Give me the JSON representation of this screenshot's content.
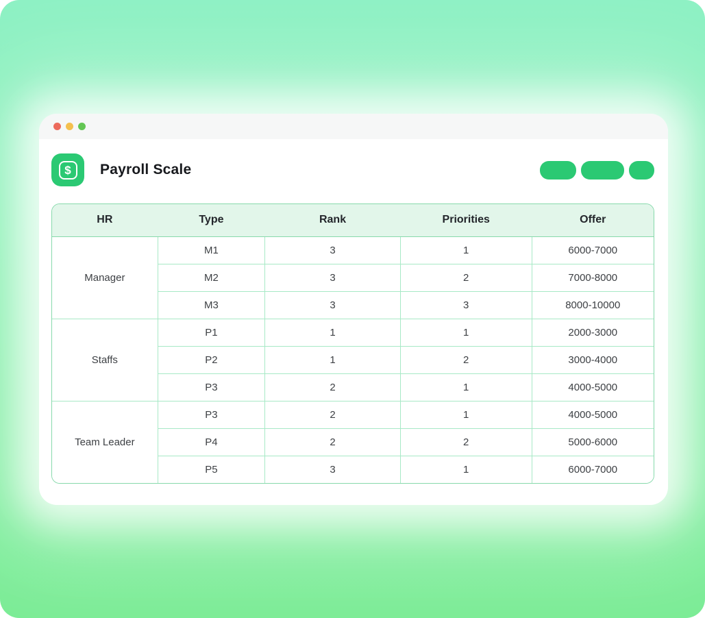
{
  "app": {
    "title": "Payroll Scale",
    "icon_glyph": "$"
  },
  "window_controls": [
    "close",
    "minimize",
    "maximize"
  ],
  "toolbar_buttons": [
    {
      "name": "toolbar-button-1",
      "label": ""
    },
    {
      "name": "toolbar-button-2",
      "label": ""
    },
    {
      "name": "toolbar-button-3",
      "label": ""
    }
  ],
  "table": {
    "columns": [
      "HR",
      "Type",
      "Rank",
      "Priorities",
      "Offer"
    ],
    "groups": [
      {
        "hr": "Manager",
        "rows": [
          [
            "M1",
            "3",
            "1",
            "6000-7000"
          ],
          [
            "M2",
            "3",
            "2",
            "7000-8000"
          ],
          [
            "M3",
            "3",
            "3",
            "8000-10000"
          ]
        ]
      },
      {
        "hr": "Staffs",
        "rows": [
          [
            "P1",
            "1",
            "1",
            "2000-3000"
          ],
          [
            "P2",
            "1",
            "2",
            "3000-4000"
          ],
          [
            "P3",
            "2",
            "1",
            "4000-5000"
          ]
        ]
      },
      {
        "hr": "Team Leader",
        "rows": [
          [
            "P3",
            "2",
            "1",
            "4000-5000"
          ],
          [
            "P4",
            "2",
            "2",
            "5000-6000"
          ],
          [
            "P5",
            "3",
            "1",
            "6000-7000"
          ]
        ]
      }
    ]
  },
  "colors": {
    "accent_green": "#2bc973",
    "bg_top": "#8df1c4",
    "bg_mid": "#82efaa",
    "bg_bottom": "#7bec95",
    "table_border": "#86d9ab",
    "table_grid": "#a7e9c6",
    "header_bg": "#e2f6ea",
    "traffic_red": "#ec6a5c",
    "traffic_yellow": "#f4c04f",
    "traffic_green": "#63c654",
    "text_dark": "#3d4044",
    "heading_dark": "#17191d"
  }
}
